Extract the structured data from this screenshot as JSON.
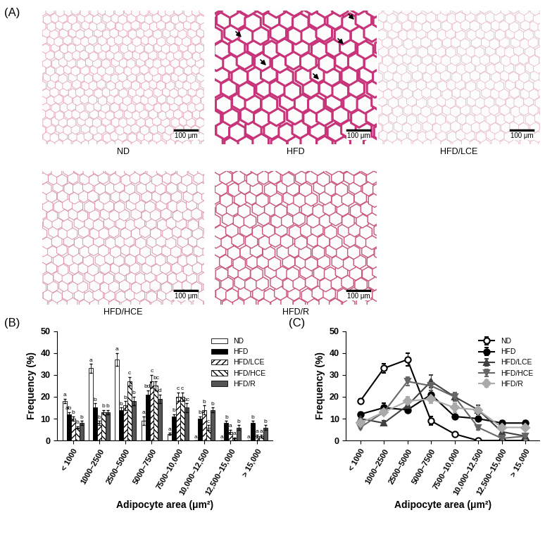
{
  "panel_labels": [
    "(A)",
    "(B)",
    "(C)"
  ],
  "images": {
    "captions": [
      "ND",
      "HFD",
      "HFD/LCE",
      "HFD/HCE",
      "HFD/R"
    ],
    "scale_bar": "100 μm"
  },
  "chart_data": [
    {
      "type": "bar",
      "x_label": "Adipocyte area (μm²)",
      "y_label": "Frequency (%)",
      "categories": [
        "< 1000",
        "1000–2500",
        "2500–5000",
        "5000–7500",
        "7500–10,000",
        "10,000–12,500",
        "12,500–15,000",
        "> 15,000"
      ],
      "ylim": [
        0,
        50
      ],
      "yticks": [
        0,
        10,
        20,
        30,
        40,
        50
      ],
      "legend": "upper right",
      "series": [
        {
          "name": "ND",
          "color": "#ffffff",
          "values": [
            18,
            33,
            37,
            9,
            3,
            0,
            0,
            0
          ],
          "errors": [
            1,
            2,
            3,
            2,
            0.5,
            0,
            0,
            0
          ],
          "annotations": [
            "a",
            "a",
            "a",
            "a",
            "a",
            "a",
            "a",
            "a"
          ]
        },
        {
          "name": "HFD",
          "color": "#000000",
          "values": [
            12,
            15,
            14,
            21,
            11,
            10,
            8,
            8
          ],
          "errors": [
            1,
            2,
            1,
            2,
            1,
            1,
            1,
            1
          ],
          "annotations": [
            "ab",
            "b",
            "b",
            "bd",
            "b",
            "b",
            "b",
            "b"
          ]
        },
        {
          "name": "HFD/LCE",
          "color": "#ffffff",
          "values": [
            10,
            8,
            16,
            27,
            20,
            14,
            4,
            2
          ],
          "errors": [
            1,
            1,
            2,
            3,
            2,
            2,
            1,
            0.5
          ],
          "annotations": [
            "b",
            "b",
            "b",
            "c",
            "c",
            "b",
            "a",
            "a"
          ]
        },
        {
          "name": "HFD/HCE",
          "color": "#ffffff",
          "values": [
            6,
            13,
            27,
            25,
            20,
            6,
            1,
            2
          ],
          "errors": [
            0.5,
            1,
            2,
            2,
            2,
            1,
            0.5,
            0.5
          ],
          "annotations": [
            "b",
            "b",
            "c",
            "bc",
            "c",
            "c",
            "a",
            "a"
          ]
        },
        {
          "name": "HFD/R",
          "color": "#555555",
          "values": [
            8,
            13,
            18,
            19,
            15,
            14,
            6,
            6
          ],
          "errors": [
            1,
            1,
            2,
            2,
            2,
            1,
            1,
            1
          ],
          "annotations": [
            "b",
            "b",
            "b",
            "d",
            "bc",
            "b",
            "b",
            "b"
          ]
        }
      ]
    },
    {
      "type": "line",
      "x_label": "Adipocyte area (μm²)",
      "y_label": "Frequency (%)",
      "categories": [
        "< 1000",
        "1000–2500",
        "2500–5000",
        "5000–7500",
        "7500–10,000",
        "10,000–12,500",
        "12,500–15,000",
        "> 15,000"
      ],
      "ylim": [
        0,
        50
      ],
      "yticks": [
        0,
        10,
        20,
        30,
        40,
        50
      ],
      "legend": "upper right",
      "series": [
        {
          "name": "ND",
          "color": "#000000",
          "marker": "open_circle",
          "values": [
            18,
            33,
            37,
            9,
            3,
            0,
            0,
            0
          ],
          "errors": [
            1,
            2,
            3,
            2,
            0.5,
            0,
            0,
            0
          ]
        },
        {
          "name": "HFD",
          "color": "#000000",
          "marker": "circle",
          "values": [
            12,
            15,
            14,
            21,
            11,
            10,
            8,
            8
          ],
          "errors": [
            1,
            2,
            1,
            2,
            1,
            1,
            1,
            1
          ]
        },
        {
          "name": "HFD/LCE",
          "color": "#404040",
          "marker": "triangle_up",
          "values": [
            10,
            8,
            16,
            27,
            20,
            14,
            4,
            2
          ],
          "errors": [
            1,
            1,
            2,
            3,
            2,
            2,
            1,
            0.5
          ]
        },
        {
          "name": "HFD/HCE",
          "color": "#666666",
          "marker": "triangle_down",
          "values": [
            6,
            13,
            27,
            25,
            20,
            6,
            1,
            2
          ],
          "errors": [
            0.5,
            1,
            2,
            2,
            2,
            1,
            0.5,
            0.5
          ]
        },
        {
          "name": "HFD/R",
          "color": "#aaaaaa",
          "marker": "diamond",
          "values": [
            8,
            13,
            18,
            19,
            15,
            14,
            6,
            6
          ],
          "errors": [
            1,
            1,
            2,
            2,
            2,
            1,
            1,
            1
          ]
        }
      ]
    }
  ]
}
